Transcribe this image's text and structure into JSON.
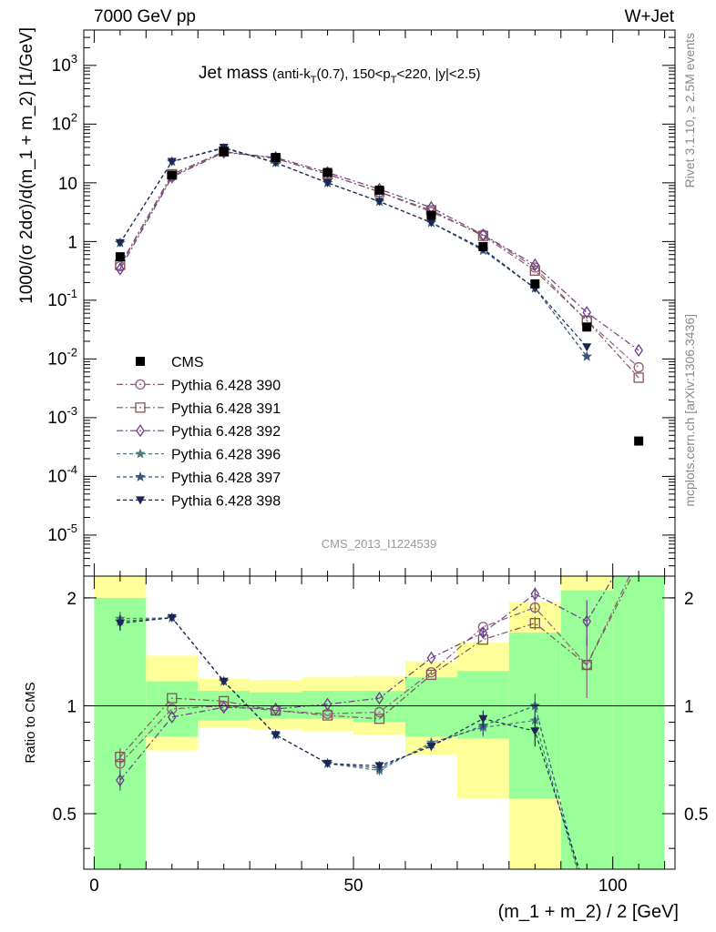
{
  "header": {
    "left": "7000 GeV pp",
    "right": "W+Jet"
  },
  "side_labels": {
    "rivet": "Rivet 3.1.10, ≥ 2.5M events",
    "mcplots": "mcplots.cern.ch [arXiv:1306.3436]"
  },
  "watermark": "CMS_2013_I1224539",
  "chart_data": {
    "type": "scatter",
    "title": "Jet mass",
    "title_detail": {
      "p1": "(anti-k",
      "s1": "T",
      "p2": "(0.7), 150<p",
      "s2": "T",
      "p3": "<220, |y|<2.5)"
    },
    "xlabel": "(m_1 + m_2) / 2 [GeV]",
    "ylabel": "1000/(σ 2dσ)/d(m_1 + m_2) [1/GeV]",
    "ratio_ylabel": "Ratio to CMS",
    "xlim": [
      -2,
      112
    ],
    "ylim": [
      2e-06,
      4000
    ],
    "ylog": true,
    "ratio_ylim": [
      0.35,
      2.3
    ],
    "ratio_ylog": true,
    "x_ticks": [
      0,
      50,
      100
    ],
    "y_ticks": [
      {
        "exp": -5
      },
      {
        "exp": -4
      },
      {
        "exp": -3
      },
      {
        "exp": -2
      },
      {
        "exp": -1
      },
      {
        "val": 1,
        "label": "1"
      },
      {
        "val": 10,
        "label": "10"
      },
      {
        "exp": 2
      },
      {
        "exp": 3
      }
    ],
    "ratio_ticks": [
      {
        "val": 0.5,
        "label": "0.5"
      },
      {
        "val": 1,
        "label": "1"
      },
      {
        "val": 2,
        "label": "2"
      }
    ],
    "x": [
      5,
      15,
      25,
      35,
      45,
      55,
      65,
      75,
      85,
      95,
      105
    ],
    "data": {
      "name": "CMS",
      "values": [
        0.55,
        13.5,
        34,
        27,
        15,
        7.5,
        2.8,
        0.82,
        0.19,
        0.035,
        0.0004
      ],
      "color": "#000000",
      "bands": [
        {
          "x0": 0,
          "x1": 10,
          "in": [
            0.35,
            2.0
          ],
          "out": [
            0.35,
            2.3
          ]
        },
        {
          "x0": 10,
          "x1": 20,
          "in": [
            0.82,
            1.17
          ],
          "out": [
            0.75,
            1.38
          ]
        },
        {
          "x0": 20,
          "x1": 30,
          "in": [
            0.91,
            1.1
          ],
          "out": [
            0.87,
            1.19
          ]
        },
        {
          "x0": 30,
          "x1": 40,
          "in": [
            0.92,
            1.09
          ],
          "out": [
            0.86,
            1.18
          ]
        },
        {
          "x0": 40,
          "x1": 50,
          "in": [
            0.92,
            1.1
          ],
          "out": [
            0.85,
            1.2
          ]
        },
        {
          "x0": 50,
          "x1": 60,
          "in": [
            0.9,
            1.1
          ],
          "out": [
            0.83,
            1.21
          ]
        },
        {
          "x0": 60,
          "x1": 70,
          "in": [
            0.82,
            1.2
          ],
          "out": [
            0.73,
            1.33
          ]
        },
        {
          "x0": 70,
          "x1": 80,
          "in": [
            0.81,
            1.25
          ],
          "out": [
            0.55,
            1.5
          ]
        },
        {
          "x0": 80,
          "x1": 90,
          "in": [
            0.55,
            1.6
          ],
          "out": [
            0.35,
            1.95
          ]
        },
        {
          "x0": 90,
          "x1": 100,
          "in": [
            0.35,
            2.1
          ],
          "out": [
            0.35,
            2.3
          ]
        },
        {
          "x0": 100,
          "x1": 110,
          "in": [
            0.35,
            2.3
          ],
          "out": [
            0.35,
            2.3
          ]
        }
      ]
    },
    "series": [
      {
        "name": "Pythia 6.428 390",
        "color": "#8e5d7e",
        "marker": "circle",
        "dash": "7,3,2,3",
        "values": [
          0.38,
          13.0,
          34,
          26,
          14,
          7.0,
          3.2,
          1.3,
          0.36,
          0.045,
          0.0072
        ],
        "ratio": [
          0.69,
          0.98,
          1.0,
          0.97,
          0.95,
          0.96,
          1.24,
          1.66,
          1.88,
          1.3,
          2.6
        ],
        "ratio_err": [
          0.05,
          0,
          0,
          0,
          0,
          0,
          0.02,
          0,
          0.07,
          0.25,
          0
        ]
      },
      {
        "name": "Pythia 6.428 391",
        "color": "#805656",
        "marker": "square",
        "dash": "7,3,2,3",
        "values": [
          0.4,
          14.0,
          34,
          26,
          14,
          7.0,
          3.4,
          1.25,
          0.32,
          0.045,
          0.0048
        ],
        "ratio": [
          0.72,
          1.05,
          1.03,
          0.97,
          0.94,
          0.92,
          1.22,
          1.53,
          1.7,
          1.3,
          2.5
        ],
        "ratio_err": [
          0.04,
          0,
          0,
          0,
          0,
          0,
          0,
          0,
          0.07,
          0,
          0
        ]
      },
      {
        "name": "Pythia 6.428 392",
        "color": "#6e3c8c",
        "marker": "diamond",
        "dash": "7,3,2,3",
        "values": [
          0.34,
          12.5,
          33,
          27,
          15,
          7.8,
          3.8,
          1.3,
          0.4,
          0.062,
          0.014
        ],
        "ratio": [
          0.62,
          0.93,
          0.99,
          0.98,
          1.01,
          1.05,
          1.36,
          1.6,
          2.05,
          1.72,
          3.0
        ],
        "ratio_err": [
          0.04,
          0,
          0,
          0,
          0,
          0,
          0,
          0.05,
          0.09,
          0.25,
          0
        ]
      },
      {
        "name": "Pythia 6.428 396",
        "color": "#4e7c82",
        "marker": "star",
        "dash": "4,3",
        "values": [
          0.95,
          23,
          39,
          22,
          10,
          4.8,
          2.1,
          0.7,
          0.16,
          0.011,
          null
        ],
        "ratio": [
          1.75,
          1.76,
          1.17,
          0.83,
          0.69,
          0.66,
          0.79,
          0.87,
          0.91,
          0.28,
          null
        ],
        "ratio_err": [
          0.08,
          0,
          0,
          0,
          0,
          0.02,
          0.02,
          0.05,
          0.07,
          0,
          0
        ]
      },
      {
        "name": "Pythia 6.428 397",
        "color": "#36597a",
        "marker": "star",
        "dash": "4,3",
        "values": [
          0.95,
          23,
          39,
          22,
          10,
          4.8,
          2.1,
          0.72,
          0.16,
          0.011,
          null
        ],
        "ratio": [
          1.72,
          1.76,
          1.17,
          0.83,
          0.69,
          0.67,
          0.78,
          0.88,
          1.0,
          0.28,
          null
        ],
        "ratio_err": [
          0.08,
          0,
          0,
          0,
          0,
          0.02,
          0.02,
          0.05,
          0.08,
          0,
          0
        ]
      },
      {
        "name": "Pythia 6.428 398",
        "color": "#1d2552",
        "marker": "triangle-down",
        "dash": "4,3",
        "values": [
          0.95,
          23,
          40,
          22,
          10,
          4.8,
          2.1,
          0.75,
          0.16,
          0.016,
          null
        ],
        "ratio": [
          1.7,
          1.76,
          1.17,
          0.83,
          0.69,
          0.68,
          0.77,
          0.92,
          0.85,
          0.3,
          null
        ],
        "ratio_err": [
          0.08,
          0,
          0,
          0,
          0,
          0.02,
          0.02,
          0.05,
          0.08,
          0,
          0
        ]
      }
    ]
  }
}
